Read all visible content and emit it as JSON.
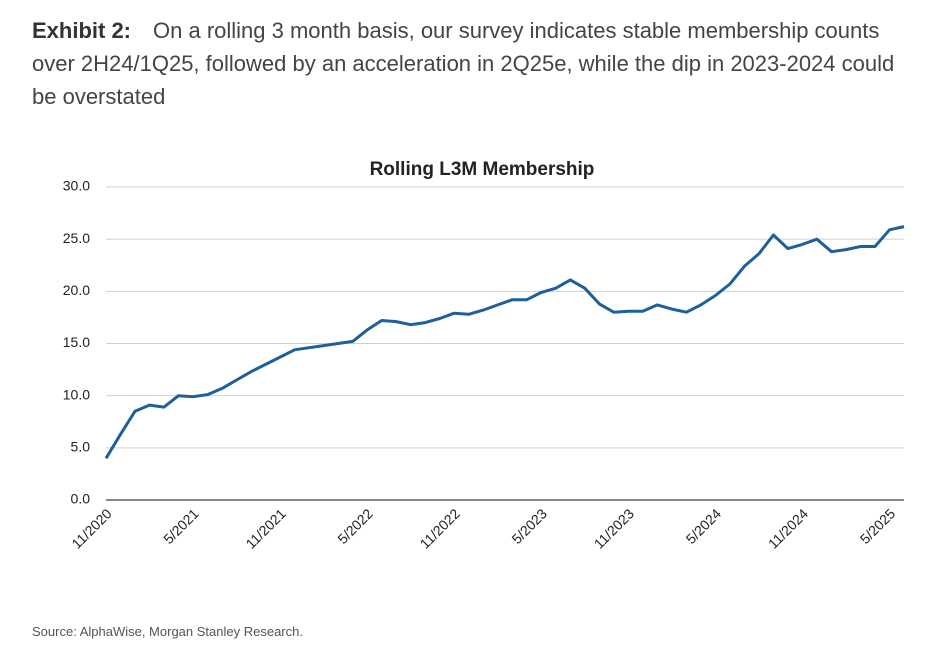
{
  "header": {
    "label": "Exhibit 2:",
    "text": "On a rolling 3 month basis, our survey indicates stable membership counts over 2H24/1Q25, followed by an acceleration in 2Q25e, while the dip in 2023-2024 could be overstated"
  },
  "chart_data": {
    "type": "line",
    "title": "Rolling L3M Membership",
    "categories": [
      "11/2020",
      null,
      null,
      null,
      null,
      null,
      "5/2021",
      null,
      null,
      null,
      null,
      null,
      "11/2021",
      null,
      null,
      null,
      null,
      null,
      "5/2022",
      null,
      null,
      null,
      null,
      null,
      "11/2022",
      null,
      null,
      null,
      null,
      null,
      "5/2023",
      null,
      null,
      null,
      null,
      null,
      "11/2023",
      null,
      null,
      null,
      null,
      null,
      "5/2024",
      null,
      null,
      null,
      null,
      null,
      "11/2024",
      null,
      null,
      null,
      null,
      null,
      "5/2025",
      null
    ],
    "series": [
      {
        "name": "Rolling L3M Membership",
        "color": "#1f5f9a",
        "values": [
          4.0,
          6.3,
          8.5,
          9.1,
          8.9,
          10.0,
          9.9,
          10.1,
          10.7,
          11.5,
          12.3,
          13.0,
          13.7,
          14.4,
          14.6,
          14.8,
          15.0,
          15.2,
          16.3,
          17.2,
          17.1,
          16.8,
          17.0,
          17.4,
          17.9,
          17.8,
          18.2,
          18.7,
          19.2,
          19.2,
          19.9,
          20.3,
          21.1,
          20.3,
          18.8,
          18.0,
          18.1,
          18.1,
          18.7,
          18.3,
          18.0,
          18.7,
          19.6,
          20.7,
          22.4,
          23.6,
          25.4,
          24.1,
          24.5,
          25.0,
          23.8,
          24.0,
          24.3,
          24.3,
          25.9,
          26.2
        ]
      }
    ],
    "ylim": [
      0,
      30
    ],
    "yticks": [
      {
        "value": 0,
        "label": "0.0"
      },
      {
        "value": 5,
        "label": "5.0"
      },
      {
        "value": 10,
        "label": "10.0"
      },
      {
        "value": 15,
        "label": "15.0"
      },
      {
        "value": 20,
        "label": "20.0"
      },
      {
        "value": 25,
        "label": "25.0"
      },
      {
        "value": 30,
        "label": "30.0"
      }
    ],
    "grid": true
  },
  "source": "Source: AlphaWise, Morgan Stanley Research."
}
